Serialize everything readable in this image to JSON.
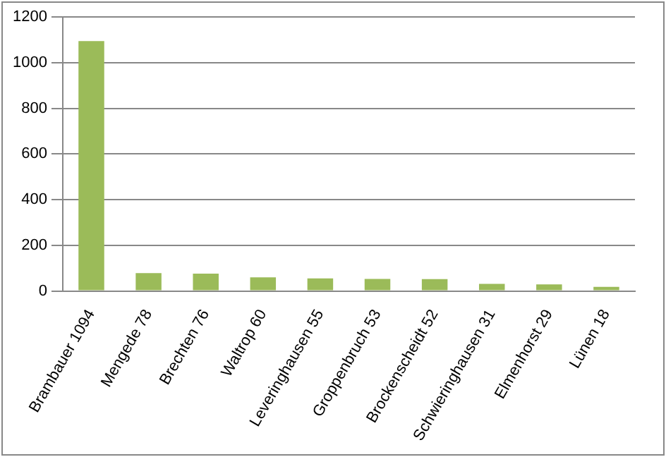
{
  "chart_data": {
    "type": "bar",
    "categories": [
      "Brambauer 1094",
      "Mengede 78",
      "Brechten 76",
      "Waltrop 60",
      "Leveringhausen 55",
      "Groppenbruch 53",
      "Brockenscheidt 52",
      "Schwieringhausen 31",
      "Elmenhorst 29",
      "Lünen 18"
    ],
    "values": [
      1094,
      78,
      76,
      60,
      55,
      53,
      52,
      31,
      29,
      18
    ],
    "color": "#9bbb59",
    "ylim": [
      0,
      1200
    ],
    "yticks": [
      0,
      200,
      400,
      600,
      800,
      1000,
      1200
    ],
    "grid": "y",
    "legend": false
  }
}
